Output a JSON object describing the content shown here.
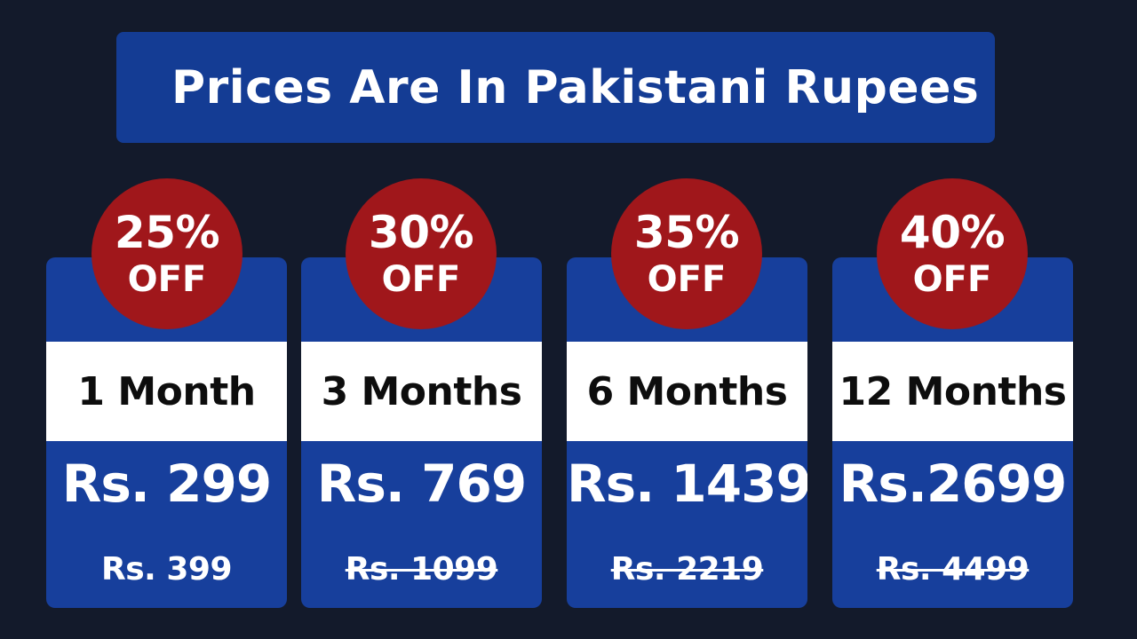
{
  "banner": {
    "title": "Prices Are In Pakistani Rupees"
  },
  "plans": [
    {
      "badge_percent": "25%",
      "badge_off": "OFF",
      "duration": "1 Month",
      "price": "Rs. 299",
      "old_price": "Rs. 399",
      "old_price_struck": false
    },
    {
      "badge_percent": "30%",
      "badge_off": "OFF",
      "duration": "3 Months",
      "price": "Rs. 769",
      "old_price": "Rs. 1099",
      "old_price_struck": true
    },
    {
      "badge_percent": "35%",
      "badge_off": "OFF",
      "duration": "6 Months",
      "price": "Rs. 1439",
      "old_price": "Rs. 2219",
      "old_price_struck": true
    },
    {
      "badge_percent": "40%",
      "badge_off": "OFF",
      "duration": "12 Months",
      "price": "Rs.2699",
      "old_price": "Rs. 4499",
      "old_price_struck": true
    }
  ],
  "colors": {
    "background": "#131a2b",
    "card_blue": "#173f9c",
    "banner_blue": "#143c94",
    "badge_red": "#a0171b",
    "duration_strip": "#ffffff"
  }
}
